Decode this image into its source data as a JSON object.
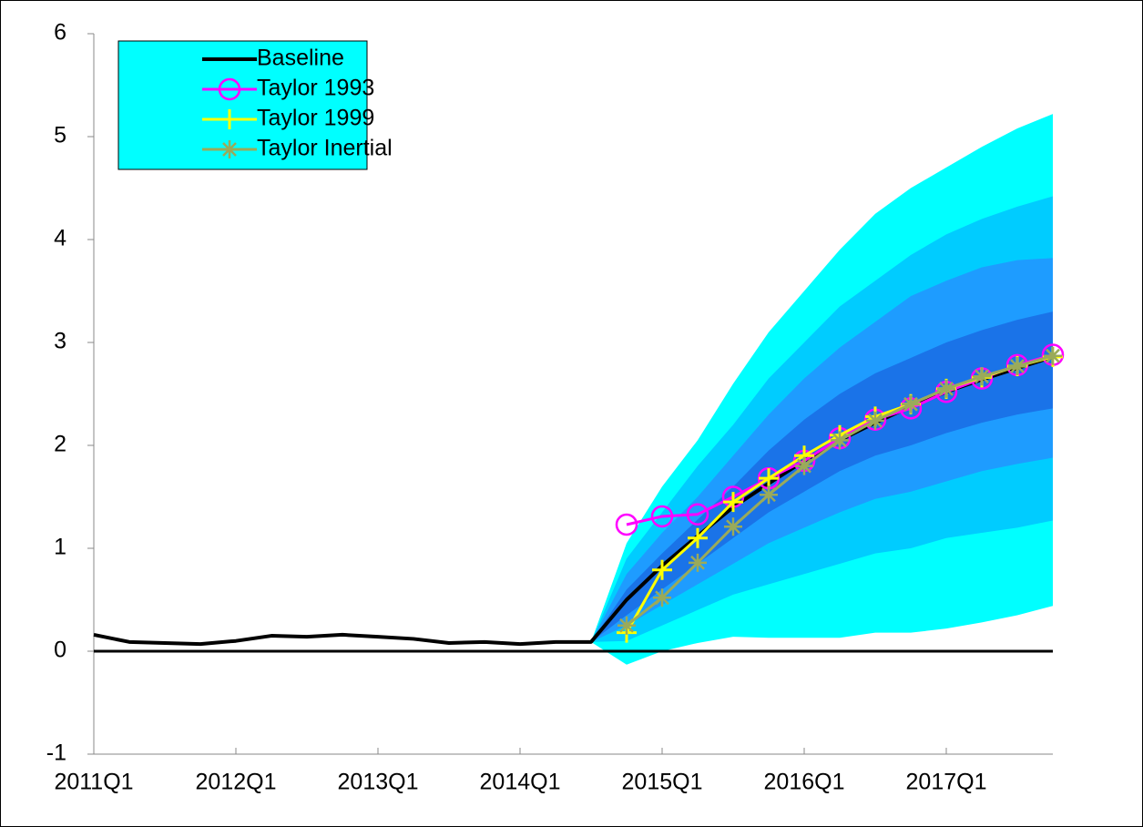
{
  "chart_data": {
    "type": "line",
    "categories": [
      "2011Q1",
      null,
      null,
      null,
      "2012Q1",
      null,
      null,
      null,
      "2013Q1",
      null,
      null,
      null,
      "2014Q1",
      null,
      null,
      null,
      "2015Q1",
      null,
      null,
      null,
      "2016Q1",
      null,
      null,
      null,
      "2017Q1",
      null,
      null,
      null
    ],
    "ylim": [
      -1,
      6
    ],
    "yticks": [
      -1,
      0,
      1,
      2,
      3,
      4,
      5,
      6
    ],
    "legend": "upper-left",
    "legend_color": "#00ffff",
    "bands": [
      {
        "color": "#00ffff",
        "upper": [
          null,
          null,
          null,
          null,
          null,
          null,
          null,
          null,
          null,
          null,
          null,
          null,
          null,
          null,
          0.09,
          1.05,
          1.6,
          2.05,
          2.6,
          3.1,
          3.5,
          3.9,
          4.25,
          4.5,
          4.7,
          4.9,
          5.08,
          5.22
        ],
        "lower": [
          null,
          null,
          null,
          null,
          null,
          null,
          null,
          null,
          null,
          null,
          null,
          null,
          null,
          null,
          0.09,
          -0.13,
          0.0,
          0.08,
          0.14,
          0.13,
          0.13,
          0.13,
          0.18,
          0.18,
          0.22,
          0.28,
          0.35,
          0.44
        ]
      },
      {
        "color": "#00ccff",
        "upper": [
          null,
          null,
          null,
          null,
          null,
          null,
          null,
          null,
          null,
          null,
          null,
          null,
          null,
          null,
          0.09,
          0.9,
          1.35,
          1.8,
          2.2,
          2.65,
          3.0,
          3.35,
          3.6,
          3.85,
          4.05,
          4.2,
          4.32,
          4.42
        ],
        "lower": [
          null,
          null,
          null,
          null,
          null,
          null,
          null,
          null,
          null,
          null,
          null,
          null,
          null,
          null,
          0.09,
          0.1,
          0.25,
          0.4,
          0.55,
          0.65,
          0.75,
          0.85,
          0.95,
          1.0,
          1.1,
          1.15,
          1.2,
          1.27
        ]
      },
      {
        "color": "#1e9cff",
        "upper": [
          null,
          null,
          null,
          null,
          null,
          null,
          null,
          null,
          null,
          null,
          null,
          null,
          null,
          null,
          0.09,
          0.75,
          1.15,
          1.5,
          1.9,
          2.3,
          2.65,
          2.95,
          3.2,
          3.45,
          3.6,
          3.73,
          3.8,
          3.82
        ],
        "lower": [
          null,
          null,
          null,
          null,
          null,
          null,
          null,
          null,
          null,
          null,
          null,
          null,
          null,
          null,
          0.09,
          0.25,
          0.45,
          0.65,
          0.85,
          1.05,
          1.2,
          1.35,
          1.48,
          1.55,
          1.65,
          1.75,
          1.82,
          1.88
        ]
      },
      {
        "color": "#1a73e8",
        "upper": [
          null,
          null,
          null,
          null,
          null,
          null,
          null,
          null,
          null,
          null,
          null,
          null,
          null,
          null,
          0.09,
          0.6,
          0.95,
          1.28,
          1.6,
          1.95,
          2.25,
          2.5,
          2.7,
          2.85,
          3.0,
          3.12,
          3.22,
          3.3
        ],
        "lower": [
          null,
          null,
          null,
          null,
          null,
          null,
          null,
          null,
          null,
          null,
          null,
          null,
          null,
          null,
          0.09,
          0.35,
          0.6,
          0.85,
          1.1,
          1.35,
          1.55,
          1.75,
          1.9,
          2.0,
          2.12,
          2.22,
          2.3,
          2.36
        ]
      }
    ],
    "series": [
      {
        "name": "Baseline",
        "color": "#000000",
        "marker": "none",
        "values": [
          0.16,
          0.09,
          0.08,
          0.07,
          0.1,
          0.15,
          0.14,
          0.16,
          0.14,
          0.12,
          0.08,
          0.09,
          0.07,
          0.09,
          0.09,
          0.5,
          0.83,
          1.12,
          1.4,
          1.63,
          1.85,
          2.05,
          2.22,
          2.38,
          2.52,
          2.64,
          2.75,
          2.86
        ]
      },
      {
        "name": "Taylor 1993",
        "color": "#ff00ff",
        "marker": "circle",
        "values": [
          null,
          null,
          null,
          null,
          null,
          null,
          null,
          null,
          null,
          null,
          null,
          null,
          null,
          null,
          null,
          1.23,
          1.31,
          1.33,
          1.5,
          1.68,
          1.85,
          2.07,
          2.25,
          2.36,
          2.52,
          2.65,
          2.78,
          2.88
        ]
      },
      {
        "name": "Taylor 1999",
        "color": "#ffff00",
        "marker": "plus",
        "values": [
          null,
          null,
          null,
          null,
          null,
          null,
          null,
          null,
          null,
          null,
          null,
          null,
          null,
          null,
          null,
          0.18,
          0.79,
          1.1,
          1.45,
          1.68,
          1.9,
          2.1,
          2.28,
          2.4,
          2.55,
          2.66,
          2.77,
          2.86
        ]
      },
      {
        "name": "Taylor Inertial",
        "color": "#9aaa5a",
        "marker": "star",
        "values": [
          null,
          null,
          null,
          null,
          null,
          null,
          null,
          null,
          null,
          null,
          null,
          null,
          null,
          null,
          null,
          0.25,
          0.52,
          0.86,
          1.21,
          1.52,
          1.8,
          2.05,
          2.24,
          2.4,
          2.55,
          2.67,
          2.77,
          2.87
        ]
      }
    ]
  }
}
